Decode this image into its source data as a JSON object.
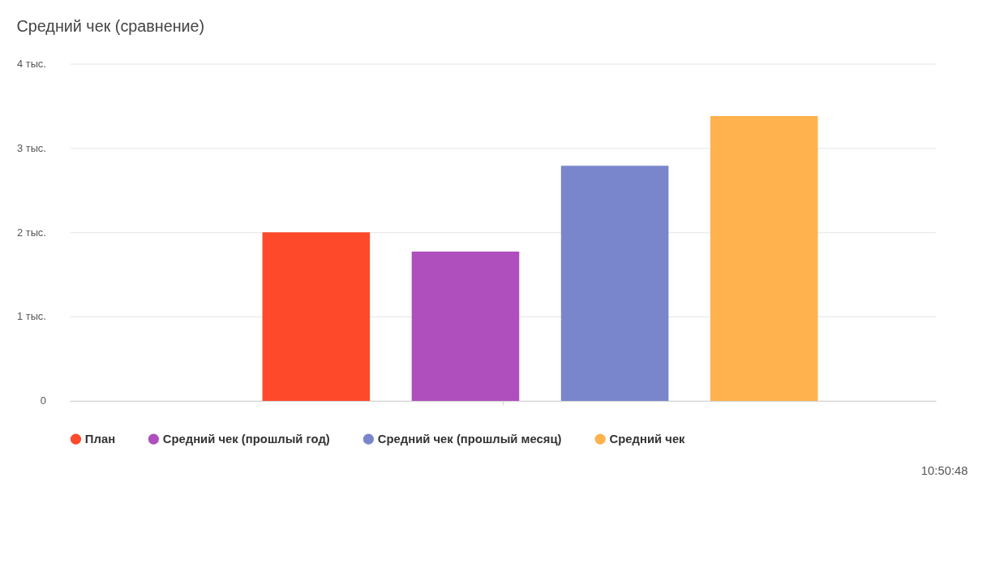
{
  "chart_data": {
    "type": "bar",
    "title": "Средний чек (сравнение)",
    "categories": [
      null
    ],
    "series": [
      {
        "name": "План",
        "color": "#fe4a2b",
        "values": [
          2.0
        ]
      },
      {
        "name": "Средний чек (прошлый год)",
        "color": "#af4fbd",
        "values": [
          1.77
        ]
      },
      {
        "name": "Средний чек (прошлый месяц)",
        "color": "#7986cb",
        "values": [
          2.79
        ]
      },
      {
        "name": "Средний чек",
        "color": "#ffb24d",
        "values": [
          3.38
        ]
      }
    ],
    "ylim": [
      0,
      4
    ],
    "yticks": [
      0,
      {
        "value": 1,
        "label": "1 тыс."
      },
      {
        "value": 2,
        "label": "2 тыс."
      },
      {
        "value": 3,
        "label": "3 тыс."
      },
      {
        "value": 4,
        "label": "4 тыс."
      }
    ],
    "grid": "y",
    "legend": "bottom",
    "marker": "circle",
    "annotations": [
      "10:50:48"
    ]
  }
}
